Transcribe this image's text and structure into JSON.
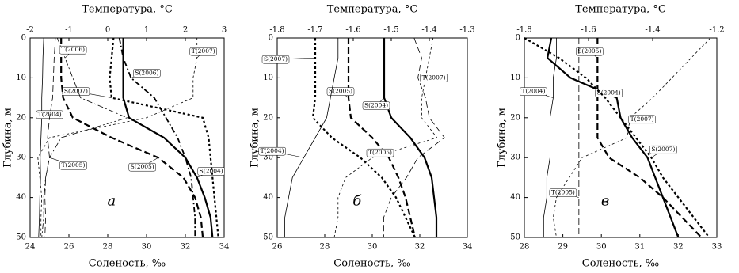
{
  "chart_data": [
    {
      "type": "line",
      "label": "а",
      "x_label": "Соленость, ‰",
      "x2_label": "Температура, °С",
      "y_label": "Глубина, м",
      "xlim": [
        24,
        34
      ],
      "xticks": [
        24,
        26,
        28,
        30,
        32,
        34
      ],
      "x2lim": [
        -2,
        3
      ],
      "x2ticks": [
        -2,
        -1,
        0,
        1,
        2,
        3
      ],
      "ylim": [
        0,
        50
      ],
      "yticks": [
        0,
        10,
        20,
        30,
        40,
        50
      ],
      "y_inverted": true,
      "y": [
        0,
        5,
        10,
        15,
        20,
        25,
        30,
        35,
        40,
        45,
        50
      ],
      "series": [
        {
          "name": "S(2004)",
          "axis": "x",
          "color": "#000000",
          "style": "solid",
          "width": 2.2,
          "values": [
            28.8,
            28.8,
            28.8,
            28.8,
            29.1,
            30.9,
            32.0,
            32.6,
            33.0,
            33.3,
            33.4
          ]
        },
        {
          "name": "S(2005)",
          "axis": "x",
          "color": "#000000",
          "style": "dashed",
          "width": 2.2,
          "values": [
            25.6,
            25.6,
            25.6,
            25.7,
            26.2,
            28.2,
            30.6,
            31.9,
            32.5,
            32.8,
            32.9
          ]
        },
        {
          "name": "S(2006)",
          "axis": "x",
          "color": "#000000",
          "style": "dashdot",
          "width": 1.8,
          "values": [
            28.6,
            28.8,
            29.2,
            30.4,
            31.0,
            31.6,
            32.0,
            32.3,
            32.4,
            32.5,
            32.5
          ]
        },
        {
          "name": "S(2007)",
          "axis": "x",
          "color": "#000000",
          "style": "dotted",
          "width": 2.2,
          "values": [
            28.3,
            28.2,
            28.1,
            28.2,
            32.9,
            33.2,
            33.3,
            33.4,
            33.5,
            33.6,
            33.7
          ]
        },
        {
          "name": "T(2004)",
          "axis": "x2",
          "color": "#000000",
          "style": "solid",
          "width": 0.8,
          "values": [
            -1.65,
            -1.67,
            -1.68,
            -1.7,
            -1.7,
            -1.72,
            -1.74,
            -1.73,
            -1.75,
            -1.76,
            -1.78
          ]
        },
        {
          "name": "T(2005)",
          "axis": "x2",
          "color": "#000000",
          "style": "dashed",
          "width": 0.8,
          "values": [
            -1.35,
            -1.38,
            -1.4,
            -1.42,
            -1.5,
            -1.55,
            -1.5,
            -1.6,
            -1.62,
            -1.6,
            -1.62
          ]
        },
        {
          "name": "T(2006)",
          "axis": "x2",
          "color": "#000000",
          "style": "dashdot",
          "width": 0.8,
          "values": [
            -1.3,
            -1.1,
            -0.9,
            -0.7,
            0.5,
            -1.2,
            -1.5,
            -1.6,
            -1.65,
            -1.65,
            -1.7
          ]
        },
        {
          "name": "T(2007)",
          "axis": "x2",
          "color": "#000000",
          "style": "dotted",
          "width": 0.8,
          "values": [
            2.3,
            2.3,
            2.2,
            2.2,
            1.0,
            -1.5,
            -1.8,
            -1.75,
            -1.7,
            -1.72,
            -1.72
          ]
        }
      ]
    },
    {
      "type": "line",
      "label": "б",
      "x_label": "Соленость, ‰",
      "x2_label": "Температура, °С",
      "y_label": "Глубина, м",
      "xlim": [
        26,
        34
      ],
      "xticks": [
        26,
        28,
        30,
        32,
        34
      ],
      "x2lim": [
        -1.8,
        -1.3
      ],
      "x2ticks": [
        -1.8,
        -1.7,
        -1.6,
        -1.5,
        -1.4,
        -1.3
      ],
      "ylim": [
        0,
        50
      ],
      "yticks": [
        0,
        10,
        20,
        30,
        40,
        50
      ],
      "y_inverted": true,
      "y": [
        0,
        5,
        10,
        15,
        20,
        25,
        30,
        35,
        40,
        45,
        50
      ],
      "series": [
        {
          "name": "S(2004)",
          "axis": "x",
          "color": "#000000",
          "style": "solid",
          "width": 2.2,
          "values": [
            30.5,
            30.5,
            30.5,
            30.5,
            30.8,
            31.6,
            32.2,
            32.5,
            32.6,
            32.7,
            32.7
          ]
        },
        {
          "name": "S(2005)",
          "axis": "x",
          "color": "#000000",
          "style": "dashed",
          "width": 2.2,
          "values": [
            29.0,
            29.0,
            29.0,
            29.0,
            29.1,
            30.0,
            30.7,
            31.1,
            31.4,
            31.6,
            31.8
          ]
        },
        {
          "name": "S(2007)",
          "axis": "x",
          "color": "#000000",
          "style": "dotted",
          "width": 2.2,
          "values": [
            27.6,
            27.6,
            27.6,
            27.6,
            27.5,
            28.3,
            29.5,
            30.4,
            31.0,
            31.4,
            31.8
          ]
        },
        {
          "name": "T(2004)",
          "axis": "x2",
          "color": "#000000",
          "style": "solid",
          "width": 0.8,
          "values": [
            -1.64,
            -1.64,
            -1.65,
            -1.66,
            -1.67,
            -1.7,
            -1.73,
            -1.76,
            -1.77,
            -1.78,
            -1.78
          ]
        },
        {
          "name": "T(2007)",
          "axis": "x2",
          "color": "#000000",
          "style": "dashed",
          "width": 0.8,
          "values": [
            -1.44,
            -1.42,
            -1.43,
            -1.41,
            -1.4,
            -1.36,
            -1.43,
            -1.46,
            -1.5,
            -1.52,
            -1.52
          ]
        },
        {
          "name": "T(2005)",
          "axis": "x2",
          "color": "#000000",
          "style": "dotted",
          "width": 0.8,
          "values": [
            -1.39,
            -1.4,
            -1.41,
            -1.42,
            -1.42,
            -1.38,
            -1.55,
            -1.62,
            -1.64,
            -1.64,
            -1.65
          ]
        }
      ]
    },
    {
      "type": "line",
      "label": "в",
      "x_label": "Соленость, ‰",
      "x2_label": "Температура, °С",
      "y_label": "Глубина, м",
      "xlim": [
        28,
        33
      ],
      "xticks": [
        28,
        29,
        30,
        31,
        32,
        33
      ],
      "x2lim": [
        -1.8,
        -1.2
      ],
      "x2ticks": [
        -1.8,
        -1.6,
        -1.4,
        -1.2
      ],
      "ylim": [
        0,
        50
      ],
      "yticks": [
        0,
        10,
        20,
        30,
        40,
        50
      ],
      "y_inverted": true,
      "y": [
        0,
        5,
        10,
        15,
        20,
        25,
        30,
        35,
        40,
        45,
        50
      ],
      "series": [
        {
          "name": "S(2005)",
          "axis": "x",
          "color": "#000000",
          "style": "dashed",
          "width": 2.2,
          "values": [
            29.9,
            29.9,
            29.9,
            29.9,
            29.9,
            29.9,
            30.2,
            31.0,
            31.6,
            32.1,
            32.6
          ]
        },
        {
          "name": "S(2004)",
          "axis": "x",
          "color": "#000000",
          "style": "solid",
          "width": 2.2,
          "values": [
            28.7,
            28.6,
            29.2,
            30.4,
            30.5,
            30.8,
            31.2,
            31.4,
            31.6,
            31.8,
            32.0
          ]
        },
        {
          "name": "S(2007)",
          "axis": "x",
          "color": "#000000",
          "style": "dotted",
          "width": 2.2,
          "values": [
            28.0,
            28.9,
            29.6,
            30.1,
            30.5,
            30.9,
            31.3,
            31.6,
            32.0,
            32.4,
            32.8
          ]
        },
        {
          "name": "T(2004)",
          "axis": "x2",
          "color": "#000000",
          "style": "solid",
          "width": 0.8,
          "values": [
            -1.7,
            -1.7,
            -1.71,
            -1.71,
            -1.72,
            -1.72,
            -1.72,
            -1.73,
            -1.73,
            -1.74,
            -1.74
          ]
        },
        {
          "name": "T(2005)",
          "axis": "x2",
          "color": "#000000",
          "style": "dashed",
          "width": 0.8,
          "values": [
            -1.63,
            -1.63,
            -1.63,
            -1.63,
            -1.63,
            -1.63,
            -1.63,
            -1.63,
            -1.63,
            -1.63,
            -1.63
          ]
        },
        {
          "name": "T(2007)",
          "axis": "x2",
          "color": "#000000",
          "style": "dotted",
          "width": 0.8,
          "values": [
            -1.22,
            -1.28,
            -1.34,
            -1.4,
            -1.47,
            -1.48,
            -1.62,
            -1.66,
            -1.7,
            -1.71,
            -1.7
          ]
        }
      ]
    }
  ]
}
